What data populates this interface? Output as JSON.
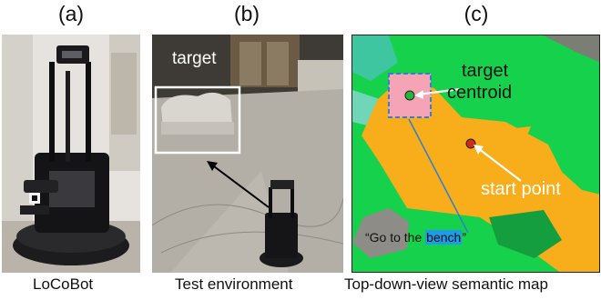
{
  "panels": [
    {
      "letter": "(a)",
      "caption": "LoCoBot"
    },
    {
      "letter": "(b)",
      "caption": "Test environment",
      "overlay_label": "target"
    },
    {
      "letter": "(c)",
      "caption": "Top-down-view semantic map",
      "labels": {
        "target": "target",
        "centroid": "centroid",
        "start": "start point"
      },
      "quote": {
        "prefix": "“Go to the ",
        "highlight": "bench",
        "suffix": "”"
      }
    }
  ],
  "colors": {
    "map_background": "#15d14c",
    "floor_region": "#f8ad1a",
    "target_box": "#f4a4b4",
    "target_box_border": "#3b7bd6",
    "centroid_dot": "#23b53a",
    "start_dot": "#d02a1c",
    "highlight": "#1e9ce8"
  }
}
